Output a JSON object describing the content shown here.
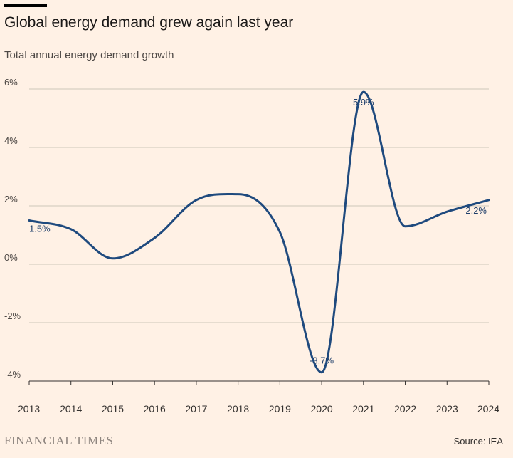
{
  "header": {
    "title": "Global energy demand grew again last year",
    "subtitle": "Total annual energy demand growth"
  },
  "footer": {
    "logo": "FINANCIAL TIMES",
    "source": "Source: IEA"
  },
  "colors": {
    "background": "#FFF1E5",
    "line": "#1F4A7E",
    "grid": "#CEC6B9",
    "label": "#1E3E6A"
  },
  "chart_data": {
    "type": "line",
    "title": "Global energy demand grew again last year",
    "subtitle": "Total annual energy demand growth",
    "x": [
      "2013",
      "2014",
      "2015",
      "2016",
      "2017",
      "2018",
      "2019",
      "2020",
      "2021",
      "2022",
      "2023",
      "2024"
    ],
    "series": [
      {
        "values": [
          1.5,
          1.2,
          0.2,
          0.9,
          2.2,
          2.4,
          1.1,
          -3.7,
          5.9,
          1.3,
          1.8,
          2.2
        ]
      }
    ],
    "ylim": [
      -4,
      6
    ],
    "yticks": [
      6,
      4,
      2,
      0,
      -2,
      -4
    ],
    "ytick_labels": [
      "6%",
      "4%",
      "2%",
      "0%",
      "-2%",
      "-4%"
    ],
    "grid": true,
    "data_labels": [
      {
        "index": 0,
        "text": "1.5%"
      },
      {
        "index": 7,
        "text": "-3.7%"
      },
      {
        "index": 8,
        "text": "5.9%"
      },
      {
        "index": 11,
        "text": "2.2%"
      }
    ],
    "source": "Source: IEA"
  }
}
